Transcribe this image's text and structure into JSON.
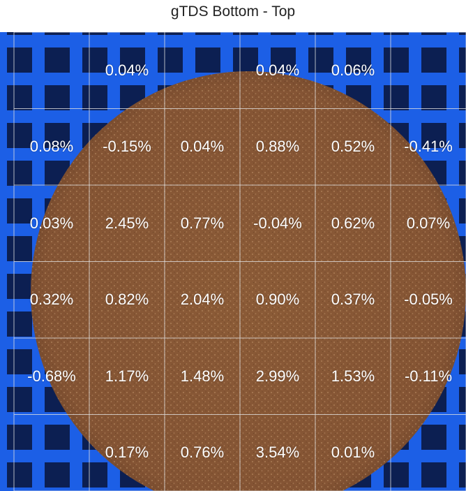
{
  "chart_data": {
    "type": "heatmap",
    "title": "gTDS Bottom - Top",
    "rows": 6,
    "cols": 6,
    "cells": [
      [
        "",
        "0.04%",
        "",
        "0.04%",
        "0.06%",
        ""
      ],
      [
        "0.08%",
        "-0.15%",
        "0.04%",
        "0.88%",
        "0.52%",
        "-0.41%"
      ],
      [
        "0.03%",
        "2.45%",
        "0.77%",
        "-0.04%",
        "0.62%",
        "0.07%"
      ],
      [
        "0.32%",
        "0.82%",
        "2.04%",
        "0.90%",
        "0.37%",
        "-0.05%"
      ],
      [
        "-0.68%",
        "1.17%",
        "1.48%",
        "2.99%",
        "1.53%",
        "-0.11%"
      ],
      [
        "",
        "0.17%",
        "0.76%",
        "3.54%",
        "0.01%",
        ""
      ]
    ],
    "grid": true,
    "background": "photo of round coffee puck on blue grid"
  },
  "colors": {
    "grid_blue": "#1c5fe6",
    "grid_dark": "#0c1f52",
    "puck": "#8a5a36",
    "cell_line": "#e0e0e0",
    "label_text": "#ffffff"
  }
}
